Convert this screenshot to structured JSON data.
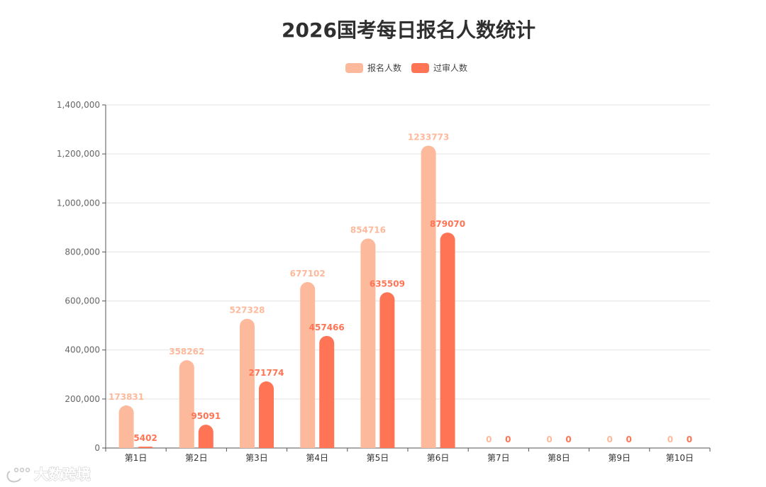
{
  "chart_data": {
    "type": "bar",
    "title": "2026国考每日报名人数统计",
    "categories": [
      "第1日",
      "第2日",
      "第3日",
      "第4日",
      "第5日",
      "第6日",
      "第7日",
      "第8日",
      "第9日",
      "第10日"
    ],
    "series": [
      {
        "name": "报名人数",
        "color": "#FDB99B",
        "values": [
          173831,
          358262,
          527328,
          677102,
          854716,
          1233773,
          0,
          0,
          0,
          0
        ]
      },
      {
        "name": "过审人数",
        "color": "#FF7455",
        "values": [
          5402,
          95091,
          271774,
          457466,
          635509,
          879070,
          0,
          0,
          0,
          0
        ]
      }
    ],
    "y_ticks": [
      "0",
      "200,000",
      "400,000",
      "600,000",
      "800,000",
      "1,000,000",
      "1,200,000",
      "1,400,000"
    ],
    "ylim": [
      0,
      1400000
    ],
    "grid": true,
    "legend_position": "top-center"
  },
  "watermark": {
    "text": "大数跨境"
  }
}
